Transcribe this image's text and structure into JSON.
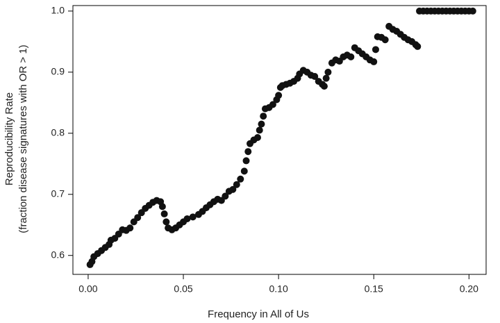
{
  "chart_data": {
    "type": "scatter",
    "xlabel": "Frequency in All of Us",
    "ylabel": "Reproducibility Rate",
    "ylabel_sub": "(fraction disease signatures with OR > 1)",
    "color": "#111111",
    "xlim": [
      -0.008,
      0.209
    ],
    "ylim": [
      0.569,
      1.009
    ],
    "xticks": [
      {
        "value": 0,
        "label": "0.00"
      },
      {
        "value": 0.05,
        "label": "0.05"
      },
      {
        "value": 0.1,
        "label": "0.10"
      },
      {
        "value": 0.15,
        "label": "0.15"
      },
      {
        "value": 0.2,
        "label": "0.20"
      }
    ],
    "yticks": [
      0.6,
      0.7,
      0.8,
      0.9,
      {
        "value": 1,
        "label": "1.0"
      }
    ],
    "x": [
      0.001,
      0.002,
      0.003,
      0.005,
      0.007,
      0.009,
      0.011,
      0.012,
      0.014,
      0.016,
      0.018,
      0.02,
      0.022,
      0.024,
      0.026,
      0.028,
      0.03,
      0.032,
      0.034,
      0.036,
      0.038,
      0.039,
      0.04,
      0.041,
      0.042,
      0.044,
      0.046,
      0.048,
      0.05,
      0.052,
      0.055,
      0.058,
      0.06,
      0.062,
      0.064,
      0.066,
      0.068,
      0.07,
      0.072,
      0.074,
      0.076,
      0.078,
      0.08,
      0.082,
      0.083,
      0.084,
      0.085,
      0.087,
      0.089,
      0.09,
      0.091,
      0.092,
      0.093,
      0.095,
      0.097,
      0.099,
      0.1,
      0.101,
      0.102,
      0.104,
      0.106,
      0.108,
      0.11,
      0.111,
      0.113,
      0.115,
      0.117,
      0.119,
      0.121,
      0.123,
      0.124,
      0.125,
      0.126,
      0.128,
      0.13,
      0.132,
      0.134,
      0.136,
      0.138,
      0.14,
      0.142,
      0.144,
      0.146,
      0.148,
      0.15,
      0.151,
      0.152,
      0.154,
      0.156,
      0.158,
      0.16,
      0.162,
      0.164,
      0.166,
      0.168,
      0.17,
      0.172,
      0.173,
      0.174,
      0.176,
      0.178,
      0.18,
      0.182,
      0.184,
      0.186,
      0.188,
      0.19,
      0.192,
      0.194,
      0.196,
      0.198,
      0.2,
      0.202
    ],
    "values": [
      0.585,
      0.59,
      0.598,
      0.603,
      0.608,
      0.613,
      0.618,
      0.625,
      0.628,
      0.635,
      0.642,
      0.641,
      0.645,
      0.655,
      0.662,
      0.67,
      0.677,
      0.682,
      0.687,
      0.69,
      0.688,
      0.68,
      0.668,
      0.655,
      0.645,
      0.642,
      0.645,
      0.65,
      0.655,
      0.66,
      0.663,
      0.667,
      0.672,
      0.678,
      0.683,
      0.688,
      0.692,
      0.69,
      0.697,
      0.705,
      0.708,
      0.716,
      0.725,
      0.738,
      0.755,
      0.77,
      0.783,
      0.789,
      0.793,
      0.805,
      0.815,
      0.828,
      0.84,
      0.842,
      0.847,
      0.855,
      0.862,
      0.875,
      0.878,
      0.88,
      0.882,
      0.885,
      0.89,
      0.897,
      0.903,
      0.9,
      0.895,
      0.893,
      0.885,
      0.88,
      0.877,
      0.89,
      0.9,
      0.915,
      0.92,
      0.918,
      0.925,
      0.928,
      0.925,
      0.94,
      0.935,
      0.93,
      0.925,
      0.92,
      0.917,
      0.937,
      0.958,
      0.957,
      0.953,
      0.975,
      0.97,
      0.967,
      0.962,
      0.957,
      0.953,
      0.95,
      0.945,
      0.942,
      1,
      1,
      1,
      1,
      1,
      1,
      1,
      1,
      1,
      1,
      1,
      1,
      1,
      1,
      1
    ]
  }
}
